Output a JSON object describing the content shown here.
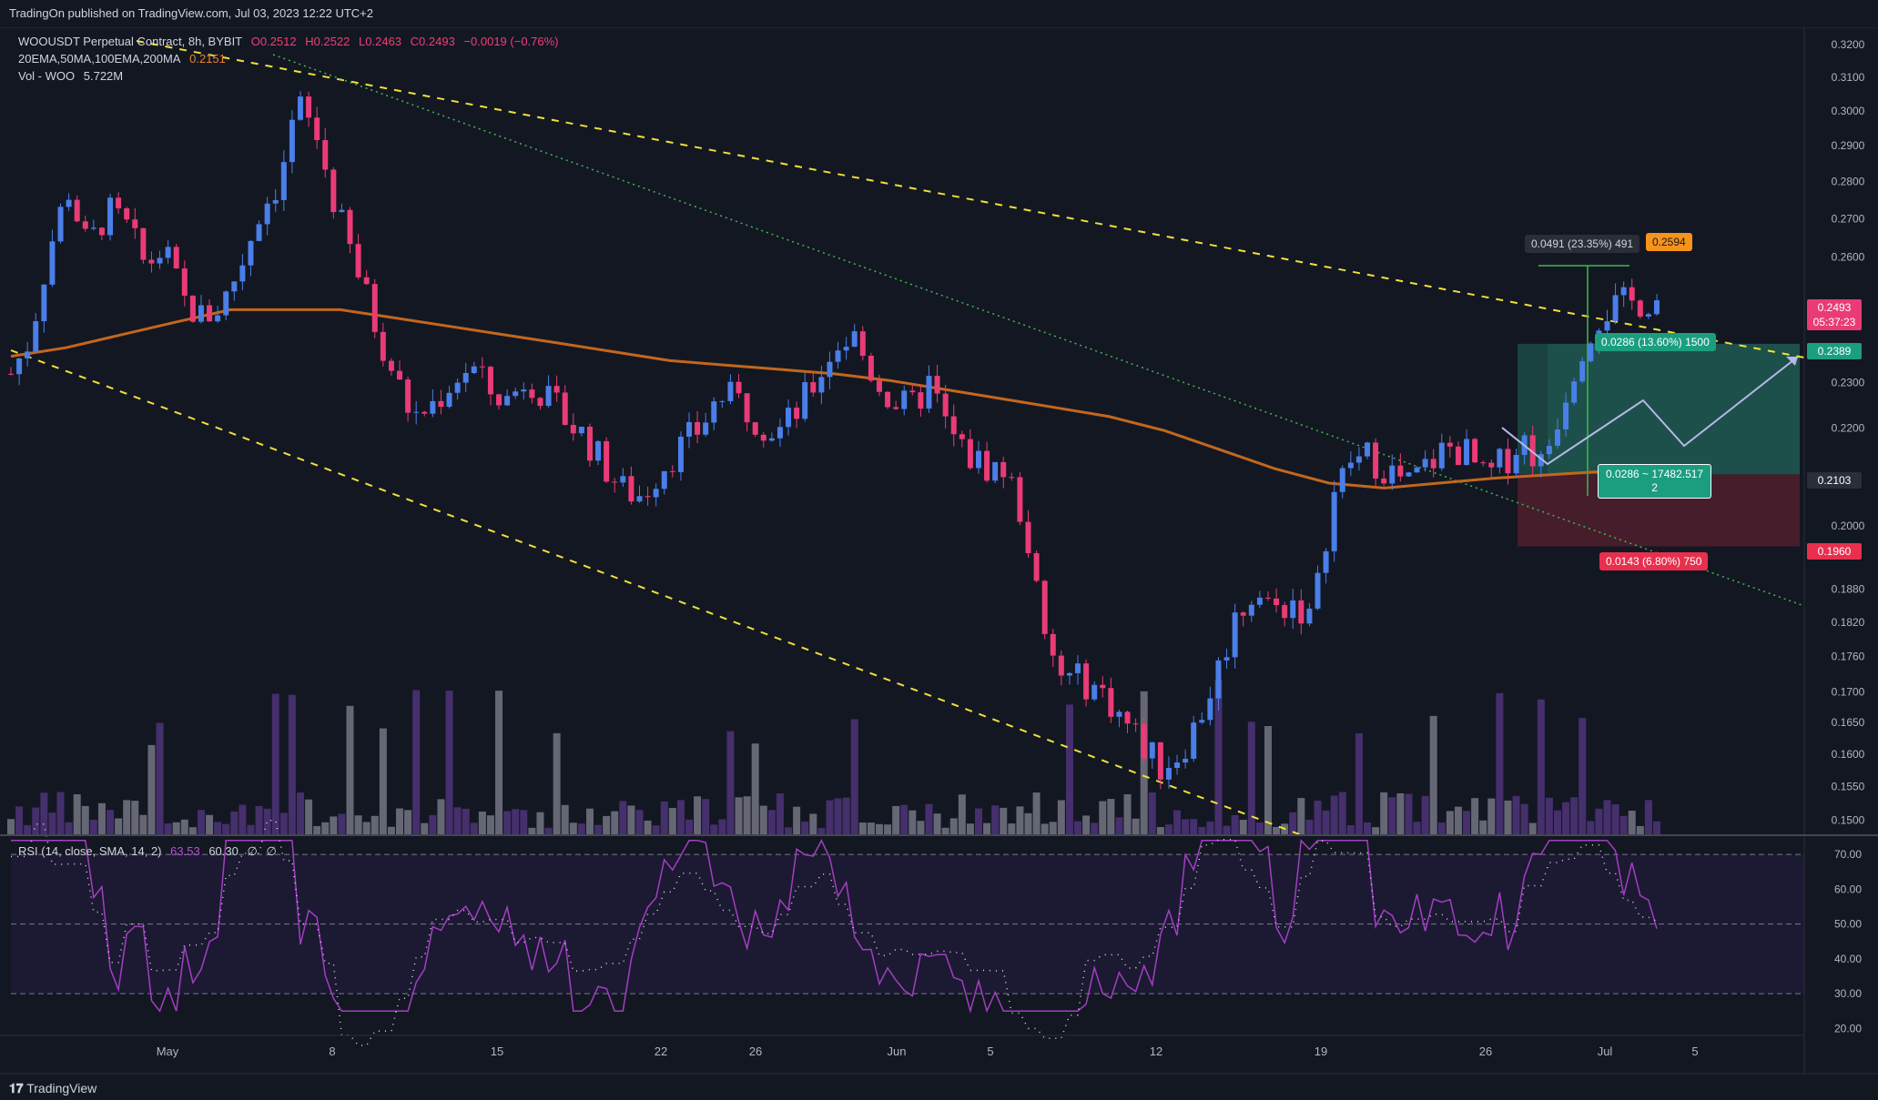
{
  "header": {
    "published": "TradingOn published on TradingView.com, Jul 03, 2023 12:22 UTC+2"
  },
  "legend": {
    "symbol": "WOOUSDT Perpetual Contract, 8h, BYBIT",
    "open": "O0.2512",
    "high": "H0.2522",
    "low": "L0.2463",
    "close": "C0.2493",
    "change": "−0.0019 (−0.76%)",
    "ma_label": "20EMA,50MA,100EMA,200MA",
    "ma_value": "0.2151",
    "vol_label": "Vol - WOO",
    "vol_value": "5.722M"
  },
  "rsi_legend": {
    "label": "RSI (14, close, SMA, 14, 2)",
    "rsi": "63.53",
    "sma": "60.30",
    "extra1": "∅",
    "extra2": "∅"
  },
  "annotations": {
    "measure": "0.0491 (23.35%) 491",
    "measure_price": "0.2594",
    "target": "0.0286 (13.60%) 1500",
    "entry": "0.0286 ~ 17482.517",
    "entry_sub": "2",
    "stop": "0.0143 (6.80%) 750"
  },
  "price_tags": {
    "last": "0.2493",
    "countdown": "05:37:23",
    "target": "0.2389",
    "entry": "0.2103",
    "stop": "0.1960"
  },
  "footer": {
    "brand": "TradingView"
  },
  "colors": {
    "up": "#4a7ee8",
    "down": "#ea3b76",
    "ma": "#c2671d",
    "rsi": "#a23fc1",
    "trend": "#f0e03a",
    "target_zone": "#1c4a44",
    "stop_zone": "#4b1e2c"
  },
  "chart_data": {
    "type": "candlestick",
    "symbol": "WOOUSDT Perpetual Contract",
    "interval": "8h",
    "price_axis": {
      "ticks": [
        "0.3200",
        "0.3100",
        "0.3000",
        "0.2900",
        "0.2800",
        "0.2700",
        "0.2600",
        "0.2300",
        "0.2200",
        "0.2000",
        "0.1880",
        "0.1820",
        "0.1760",
        "0.1700",
        "0.1650",
        "0.1600",
        "0.1550",
        "0.1500"
      ],
      "scale": "log"
    },
    "time_axis": {
      "labels": [
        "May",
        "8",
        "15",
        "22",
        "26",
        "Jun",
        "5",
        "12",
        "19",
        "26",
        "Jul",
        "5"
      ]
    },
    "close_path": [
      0.232,
      0.24,
      0.262,
      0.278,
      0.262,
      0.272,
      0.268,
      0.258,
      0.262,
      0.249,
      0.245,
      0.248,
      0.258,
      0.272,
      0.28,
      0.302,
      0.292,
      0.272,
      0.258,
      0.244,
      0.232,
      0.222,
      0.225,
      0.23,
      0.234,
      0.228,
      0.226,
      0.232,
      0.226,
      0.222,
      0.218,
      0.212,
      0.207,
      0.206,
      0.212,
      0.216,
      0.22,
      0.227,
      0.226,
      0.222,
      0.219,
      0.223,
      0.23,
      0.238,
      0.241,
      0.232,
      0.226,
      0.224,
      0.23,
      0.219,
      0.214,
      0.212,
      0.211,
      0.2,
      0.178,
      0.172,
      0.172,
      0.17,
      0.166,
      0.162,
      0.158,
      0.16,
      0.165,
      0.173,
      0.183,
      0.188,
      0.184,
      0.186,
      0.182,
      0.205,
      0.213,
      0.214,
      0.211,
      0.208,
      0.212,
      0.216,
      0.215,
      0.209,
      0.213,
      0.218,
      0.212,
      0.225,
      0.238,
      0.246,
      0.248,
      0.249,
      0.2493
    ],
    "ma200": [
      0.236,
      0.238,
      0.241,
      0.244,
      0.247,
      0.247,
      0.247,
      0.245,
      0.243,
      0.241,
      0.239,
      0.237,
      0.235,
      0.234,
      0.233,
      0.232,
      0.2305,
      0.2285,
      0.2265,
      0.2245,
      0.2225,
      0.2195,
      0.2155,
      0.2115,
      0.2085,
      0.2075,
      0.2085,
      0.2095,
      0.2102,
      0.2109,
      0.2115
    ],
    "volume_peak": "5.722M",
    "rsi": {
      "label": "RSI (14, close, SMA, 14, 2)",
      "value": 63.53,
      "sma": 60.3,
      "levels": [
        70,
        50,
        30
      ],
      "ticks": [
        "70.00",
        "60.00",
        "50.00",
        "40.00",
        "30.00",
        "20.00"
      ]
    },
    "long_position": {
      "entry": 0.2103,
      "target": 0.2389,
      "stop": 0.196
    },
    "measure": {
      "change": 0.0491,
      "percent": 23.35,
      "price": 0.2594
    }
  }
}
